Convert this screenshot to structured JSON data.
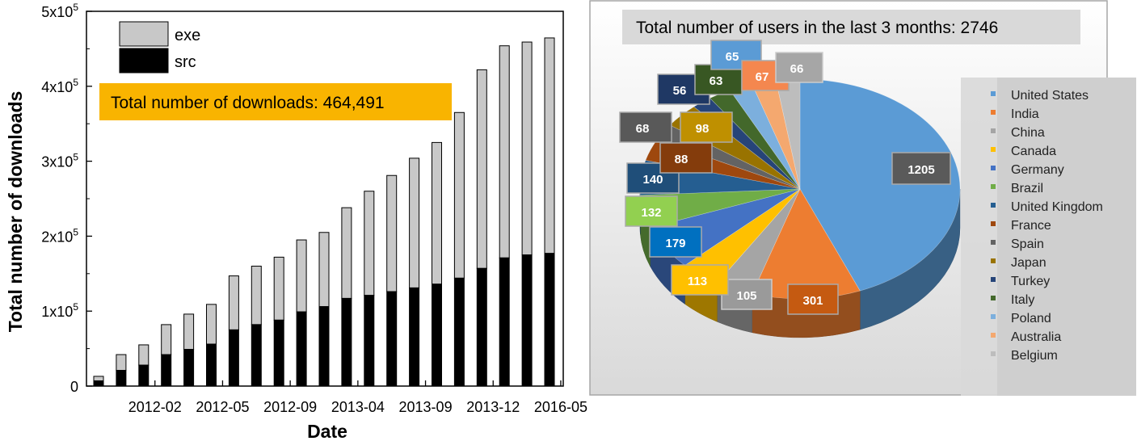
{
  "chart_data": [
    {
      "type": "bar",
      "stacked": true,
      "xlabel": "Date",
      "ylabel": "Total number of downloads",
      "ylim": [
        0,
        500000
      ],
      "y_ticks": [
        {
          "value": 0,
          "base": "0",
          "exp": ""
        },
        {
          "value": 100000,
          "base": "1x10",
          "exp": "5"
        },
        {
          "value": 200000,
          "base": "2x10",
          "exp": "5"
        },
        {
          "value": 300000,
          "base": "3x10",
          "exp": "5"
        },
        {
          "value": 400000,
          "base": "4x10",
          "exp": "5"
        },
        {
          "value": 500000,
          "base": "5x10",
          "exp": "5"
        }
      ],
      "x_tick_labels": [
        {
          "label": "2012-02",
          "index": 2.5
        },
        {
          "label": "2012-05",
          "index": 5.5
        },
        {
          "label": "2012-09",
          "index": 8.5
        },
        {
          "label": "2013-04",
          "index": 11.5
        },
        {
          "label": "2013-09",
          "index": 14.5
        },
        {
          "label": "2013-12",
          "index": 17.5
        },
        {
          "label": "2016-05",
          "index": 20.5
        }
      ],
      "series": [
        {
          "name": "src",
          "color": "#000000",
          "values": [
            7000,
            21000,
            28000,
            42000,
            49000,
            56000,
            75000,
            82000,
            88000,
            99000,
            106000,
            117000,
            121000,
            126000,
            131000,
            136000,
            144000,
            157000,
            171000,
            175000,
            177000
          ]
        },
        {
          "name": "exe",
          "color": "#c8c8c8",
          "values": [
            6000,
            21000,
            27000,
            40000,
            47000,
            53000,
            72000,
            78000,
            84000,
            96000,
            99000,
            121000,
            139000,
            155000,
            173000,
            189000,
            221000,
            265000,
            283000,
            284000,
            287491
          ]
        }
      ],
      "legend": {
        "position": "top-left",
        "entries": [
          "exe",
          "src"
        ]
      },
      "annotation": {
        "text": "Total number of downloads: 464,491",
        "color": "#f9b400"
      }
    },
    {
      "type": "pie",
      "title": "Total number of users in the last 3 months: 2746",
      "slices": [
        {
          "label": "United States",
          "value": 1205,
          "color": "#5b9bd5",
          "label_color": "#5a5a5a"
        },
        {
          "label": "India",
          "value": 301,
          "color": "#ed7d31",
          "label_color": "#c55a11"
        },
        {
          "label": "China",
          "value": 105,
          "color": "#a5a5a5",
          "label_color": "#9a9a9a"
        },
        {
          "label": "Canada",
          "value": 113,
          "color": "#ffc000",
          "label_color": "#ffc000"
        },
        {
          "label": "Germany",
          "value": 179,
          "color": "#4472c4",
          "label_color": "#0070c0"
        },
        {
          "label": "Brazil",
          "value": 132,
          "color": "#70ad47",
          "label_color": "#92d050"
        },
        {
          "label": "United Kingdom",
          "value": 140,
          "color": "#255e91",
          "label_color": "#1f4e79"
        },
        {
          "label": "France",
          "value": 88,
          "color": "#9e480e",
          "label_color": "#843c0c"
        },
        {
          "label": "Spain",
          "value": 68,
          "color": "#636363",
          "label_color": "#595959"
        },
        {
          "label": "Japan",
          "value": 98,
          "color": "#997300",
          "label_color": "#bf9000"
        },
        {
          "label": "Turkey",
          "value": 56,
          "color": "#264478",
          "label_color": "#1f3864"
        },
        {
          "label": "Italy",
          "value": 63,
          "color": "#43682b",
          "label_color": "#385723"
        },
        {
          "label": "Poland",
          "value": 65,
          "color": "#7cafdd",
          "label_color": "#5b9bd5"
        },
        {
          "label": "Australia",
          "value": 67,
          "color": "#f4a86f",
          "label_color": "#f4874f"
        },
        {
          "label": "Belgium",
          "value": 66,
          "color": "#bdbdbd",
          "label_color": "#a6a6a6"
        }
      ],
      "legend": {
        "position": "right"
      }
    }
  ]
}
